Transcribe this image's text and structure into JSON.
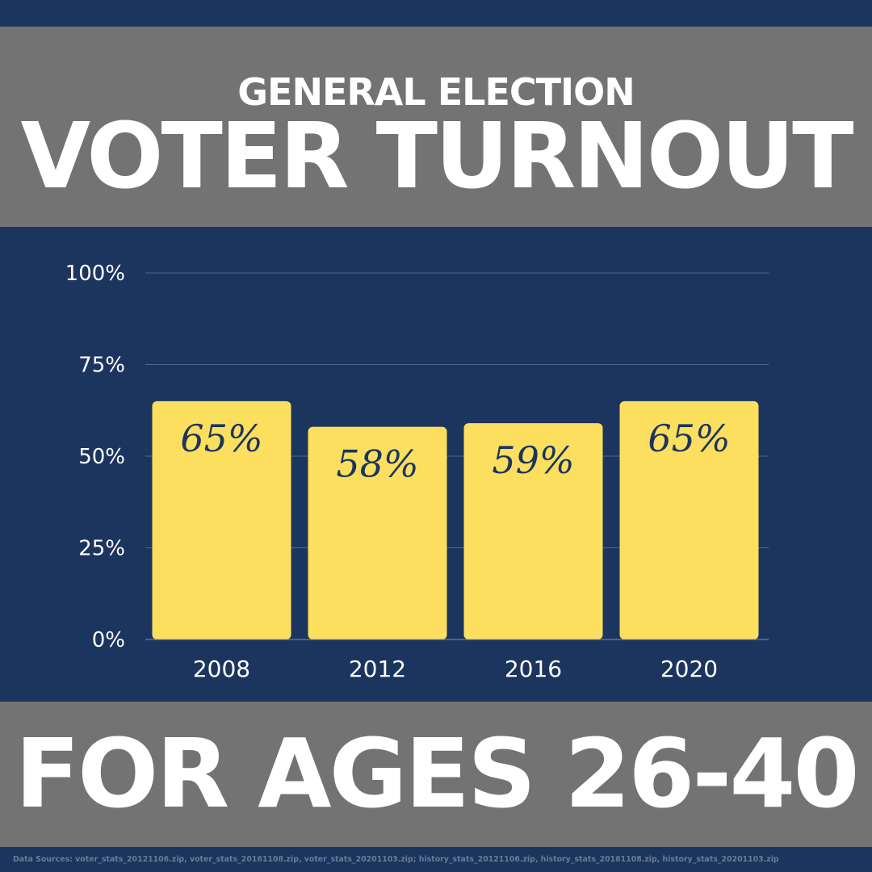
{
  "header": {
    "subtitle": "GENERAL ELECTION",
    "title": "VOTER TURNOUT"
  },
  "footer": {
    "title": "FOR AGES 26-40",
    "source": "Data Sources: voter_stats_20121106.zip, voter_stats_20161108.zip, voter_stats_20201103.zip; history_stats_20121106.zip, history_stats_20161108.zip, history_stats_20201103.zip"
  },
  "colors": {
    "background": "#1c355e",
    "band": "#737373",
    "bar": "#fddf5f",
    "grid": "#52688a"
  },
  "chart_data": {
    "type": "bar",
    "categories": [
      "2008",
      "2012",
      "2016",
      "2020"
    ],
    "values": [
      65,
      58,
      59,
      65
    ],
    "data_labels": [
      "65%",
      "58%",
      "59%",
      "65%"
    ],
    "title": "",
    "xlabel": "",
    "ylabel": "",
    "ylim": [
      0,
      100
    ],
    "yticks": [
      "0%",
      "25%",
      "50%",
      "75%",
      "100%"
    ],
    "grid": true,
    "legend": "none"
  }
}
